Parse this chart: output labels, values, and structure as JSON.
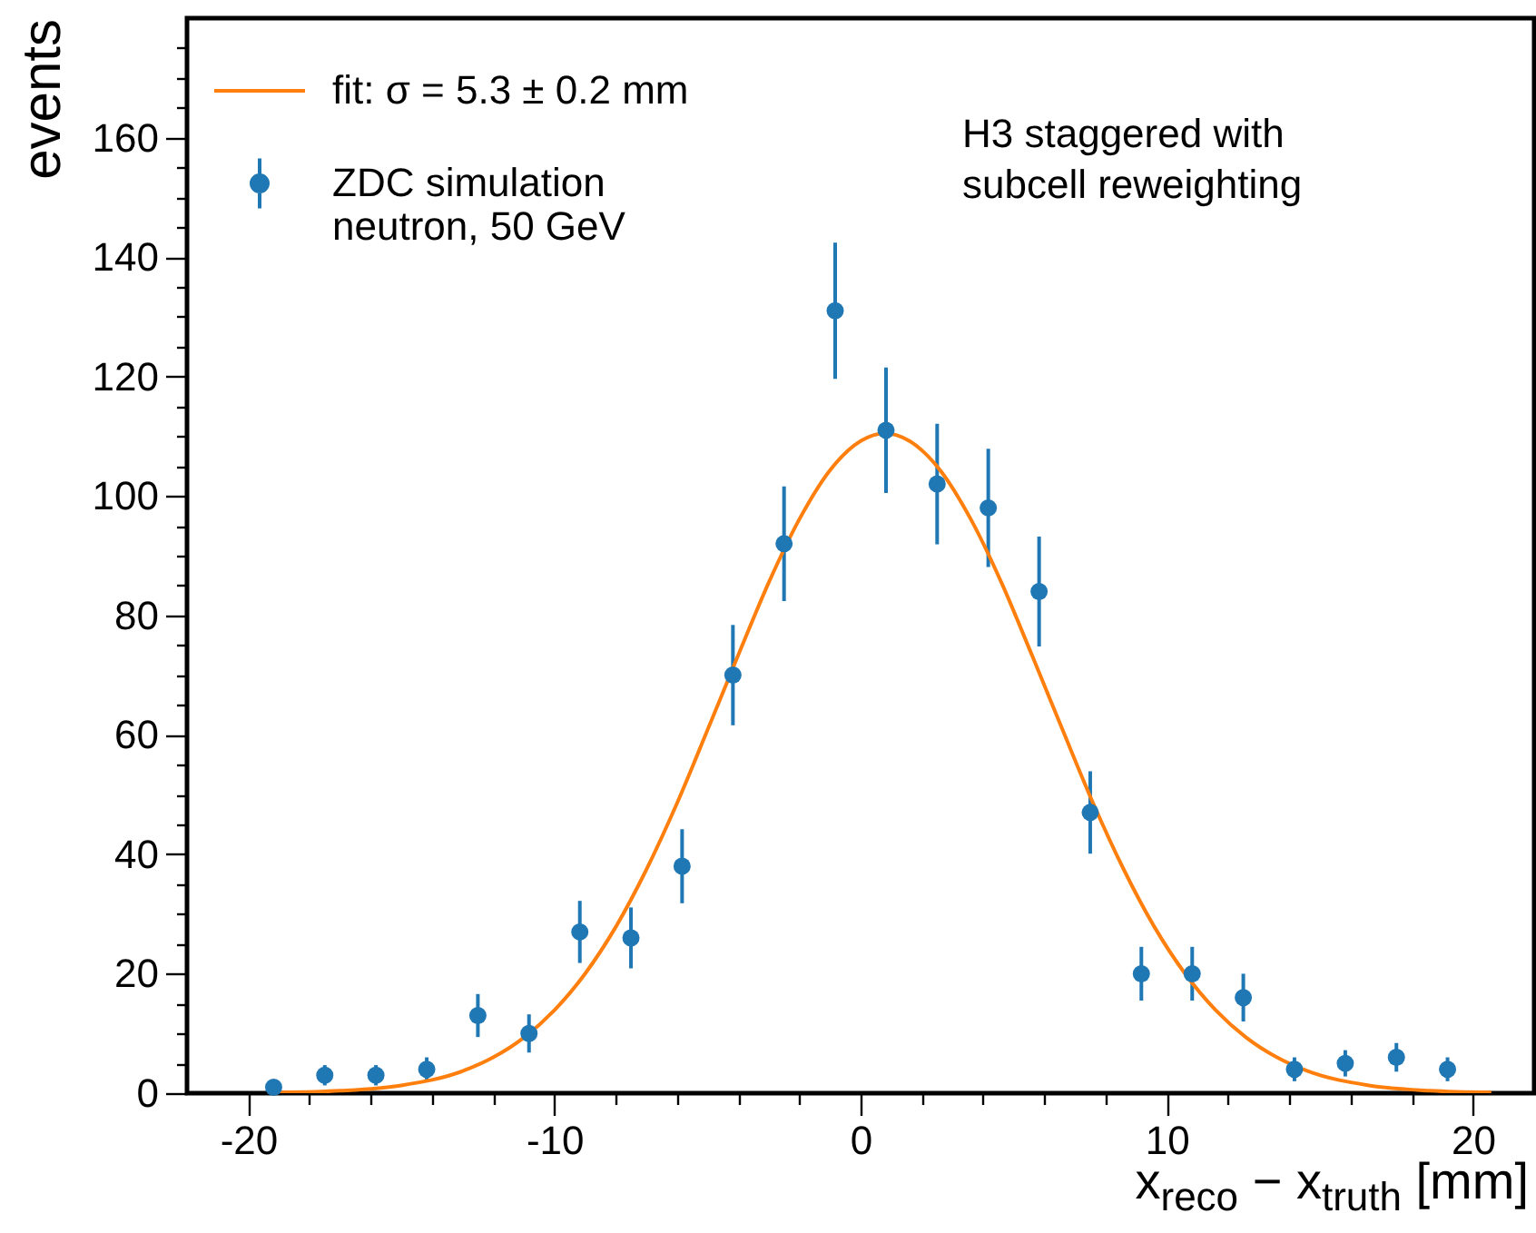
{
  "chart_data": {
    "type": "scatter",
    "xlabel": "x$_{reco}$ − x$_{truth}$ [mm]",
    "ylabel": "events",
    "xlim": [
      -22,
      22
    ],
    "ylim": [
      0,
      180
    ],
    "xticks": [
      {
        "value": -20,
        "label": "-20"
      },
      {
        "value": -18,
        "label": null
      },
      {
        "value": -16,
        "label": null
      },
      {
        "value": -14,
        "label": null
      },
      {
        "value": -12,
        "label": null
      },
      {
        "value": -10,
        "label": "-10"
      },
      {
        "value": -8,
        "label": null
      },
      {
        "value": -6,
        "label": null
      },
      {
        "value": -4,
        "label": null
      },
      {
        "value": -2,
        "label": null
      },
      0,
      {
        "value": 2,
        "label": null
      },
      {
        "value": 4,
        "label": null
      },
      {
        "value": 6,
        "label": null
      },
      {
        "value": 8,
        "label": null
      },
      10,
      {
        "value": 12,
        "label": null
      },
      {
        "value": 14,
        "label": null
      },
      {
        "value": 16,
        "label": null
      },
      {
        "value": 18,
        "label": null
      },
      20
    ],
    "yticks": [
      0,
      {
        "value": 5,
        "label": null
      },
      {
        "value": 10,
        "label": null
      },
      {
        "value": 15,
        "label": null
      },
      20,
      {
        "value": 25,
        "label": null
      },
      {
        "value": 30,
        "label": null
      },
      {
        "value": 35,
        "label": null
      },
      40,
      {
        "value": 45,
        "label": null
      },
      {
        "value": 50,
        "label": null
      },
      {
        "value": 55,
        "label": null
      },
      60,
      {
        "value": 65,
        "label": null
      },
      {
        "value": 70,
        "label": null
      },
      {
        "value": 75,
        "label": null
      },
      80,
      {
        "value": 85,
        "label": null
      },
      {
        "value": 90,
        "label": null
      },
      {
        "value": 95,
        "label": null
      },
      100,
      {
        "value": 105,
        "label": null
      },
      {
        "value": 110,
        "label": null
      },
      {
        "value": 115,
        "label": null
      },
      120,
      {
        "value": 125,
        "label": null
      },
      {
        "value": 130,
        "label": null
      },
      {
        "value": 135,
        "label": null
      },
      140,
      {
        "value": 145,
        "label": null
      },
      {
        "value": 150,
        "label": null
      },
      {
        "value": 155,
        "label": null
      },
      160,
      {
        "value": 165,
        "label": null
      },
      {
        "value": 170,
        "label": null
      },
      {
        "value": 175,
        "label": null
      }
    ],
    "grid": false,
    "legend": "top left",
    "annotations": [
      "H3 staggered with\nsubcell reweighting"
    ],
    "series": [
      {
        "name": "fit: σ = 5.3 ± 0.2 mm",
        "type": "line",
        "color": "#ff7f0e",
        "x": [
          -19,
          -17,
          -15,
          -13,
          -12,
          -11,
          -10,
          -9,
          -8,
          -7,
          -6,
          -5,
          -4,
          -3,
          -2,
          -1,
          0,
          0.8,
          1.6,
          2.6,
          3.6,
          4.6,
          5.6,
          6.6,
          7.6,
          8.6,
          9.6,
          10.6,
          11.6,
          12.6,
          13.6,
          14.6,
          16.6,
          18.6,
          20.6
        ],
        "values": [
          0.1,
          0.4,
          1.3,
          3.7,
          6,
          9.3,
          13.9,
          20,
          27.8,
          37.4,
          48.5,
          60.8,
          73.3,
          85.5,
          96.1,
          104.3,
          109.2,
          110.5,
          109.2,
          104.3,
          96.1,
          85.5,
          73.3,
          60.8,
          48.5,
          37.4,
          27.8,
          20,
          13.9,
          9.3,
          6,
          3.7,
          1.3,
          0.4,
          0.1
        ]
      },
      {
        "name": "ZDC simulation\nneutron, 50 GeV",
        "type": "scatter",
        "marker": "circle",
        "color": "#1f77b4",
        "x": [
          -19.17,
          -17.5,
          -15.83,
          -14.17,
          -12.5,
          -10.83,
          -9.17,
          -7.5,
          -5.83,
          -4.17,
          -2.5,
          -0.83,
          0.83,
          2.5,
          4.17,
          5.83,
          7.5,
          9.17,
          10.83,
          12.5,
          14.17,
          15.83,
          17.5,
          19.17
        ],
        "values": [
          1,
          3,
          3,
          4,
          13,
          10,
          27,
          26,
          38,
          70,
          92,
          131,
          111,
          102,
          98,
          84,
          47,
          20,
          20,
          16,
          4,
          5,
          6,
          4
        ],
        "errors": [
          1,
          1.7,
          1.7,
          2,
          3.6,
          3.2,
          5.2,
          5.1,
          6.2,
          8.4,
          9.6,
          11.4,
          10.5,
          10.1,
          9.9,
          9.2,
          6.9,
          4.5,
          4.5,
          4,
          2,
          2.2,
          2.4,
          2
        ]
      }
    ]
  }
}
